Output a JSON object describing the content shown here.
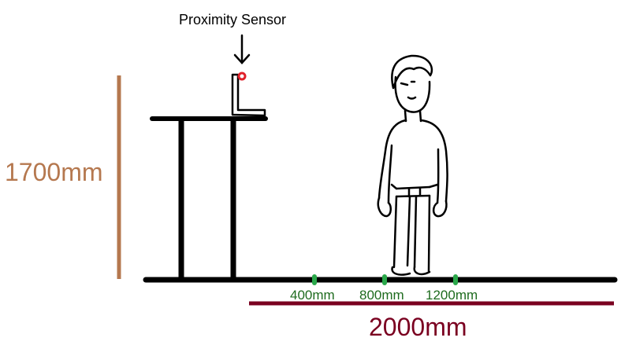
{
  "labels": {
    "sensor": "Proximity Sensor",
    "height": "1700mm",
    "width": "2000mm",
    "tick_400": "400mm",
    "tick_800": "800mm",
    "tick_1200": "1200mm"
  },
  "colors": {
    "height_dimension": "#b5784f",
    "width_dimension": "#7a0020",
    "ticks": "#2aa84a",
    "tick_text": "#1e6b1e",
    "sensor_dot": "#e0202a",
    "ink": "#000000"
  },
  "icons": {
    "sensor": "sensor-icon",
    "arrow": "arrow-down-icon",
    "person": "person-icon"
  }
}
